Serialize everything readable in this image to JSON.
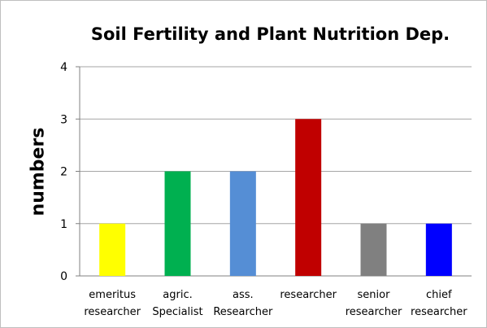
{
  "chart_data": {
    "type": "bar",
    "title": "Soil Fertility and Plant Nutrition Dep.",
    "xlabel": "",
    "ylabel": "numbers",
    "ylim": [
      0,
      4
    ],
    "yticks": [
      0,
      1,
      2,
      3,
      4
    ],
    "grid": true,
    "legend": "none",
    "categories": [
      [
        "emeritus",
        "researcher"
      ],
      [
        "agric.",
        "Specialist"
      ],
      [
        "ass.",
        "Researcher"
      ],
      [
        "researcher"
      ],
      [
        "senior",
        "researcher"
      ],
      [
        "chief",
        "researcher"
      ]
    ],
    "values": [
      1,
      2,
      2,
      3,
      1,
      1
    ],
    "colors": [
      "#ffff00",
      "#00b050",
      "#558ed5",
      "#c00000",
      "#808080",
      "#0000ff"
    ]
  }
}
